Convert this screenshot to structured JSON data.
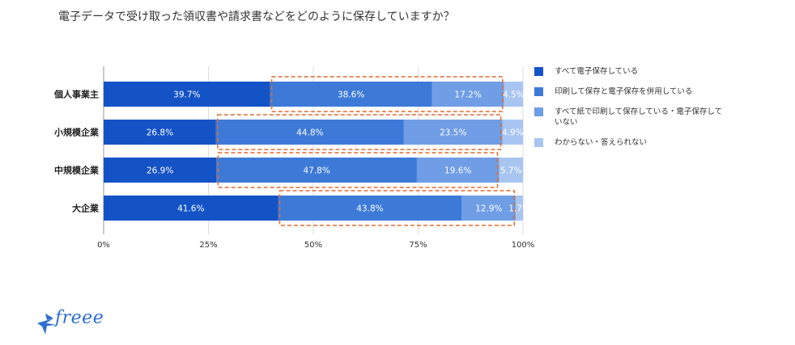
{
  "title": "電子データで受け取った領収書や請求書などをどのように保存していますか？",
  "chart_data": {
    "type": "bar",
    "orientation": "horizontal",
    "stacked": true,
    "categories": [
      "個人事業主",
      "小規模企業",
      "中規模企業",
      "大企業"
    ],
    "series": [
      {
        "name": "すべて電子保存している",
        "color": "#1453c6",
        "values": [
          39.7,
          26.8,
          26.9,
          41.6
        ]
      },
      {
        "name": "印刷して保存と電子保存を併用している",
        "color": "#3d7ad8",
        "values": [
          38.6,
          44.8,
          47.8,
          43.8
        ]
      },
      {
        "name": "すべて紙で印刷して保存している・電子保存していない",
        "color": "#6f9ee6",
        "values": [
          17.2,
          23.5,
          19.6,
          12.9
        ]
      },
      {
        "name": "わからない・答えられない",
        "color": "#a8c5f2",
        "values": [
          4.5,
          4.9,
          5.7,
          1.7
        ]
      }
    ],
    "xlim": [
      0,
      100
    ],
    "xticks": [
      "0%",
      "25%",
      "50%",
      "75%",
      "100%"
    ],
    "grid": true,
    "legend": "right",
    "highlight": "dashed orange box around series 2–3 of each bar",
    "highlight_color": "#e06b2e"
  },
  "logo": {
    "text": "freee"
  }
}
